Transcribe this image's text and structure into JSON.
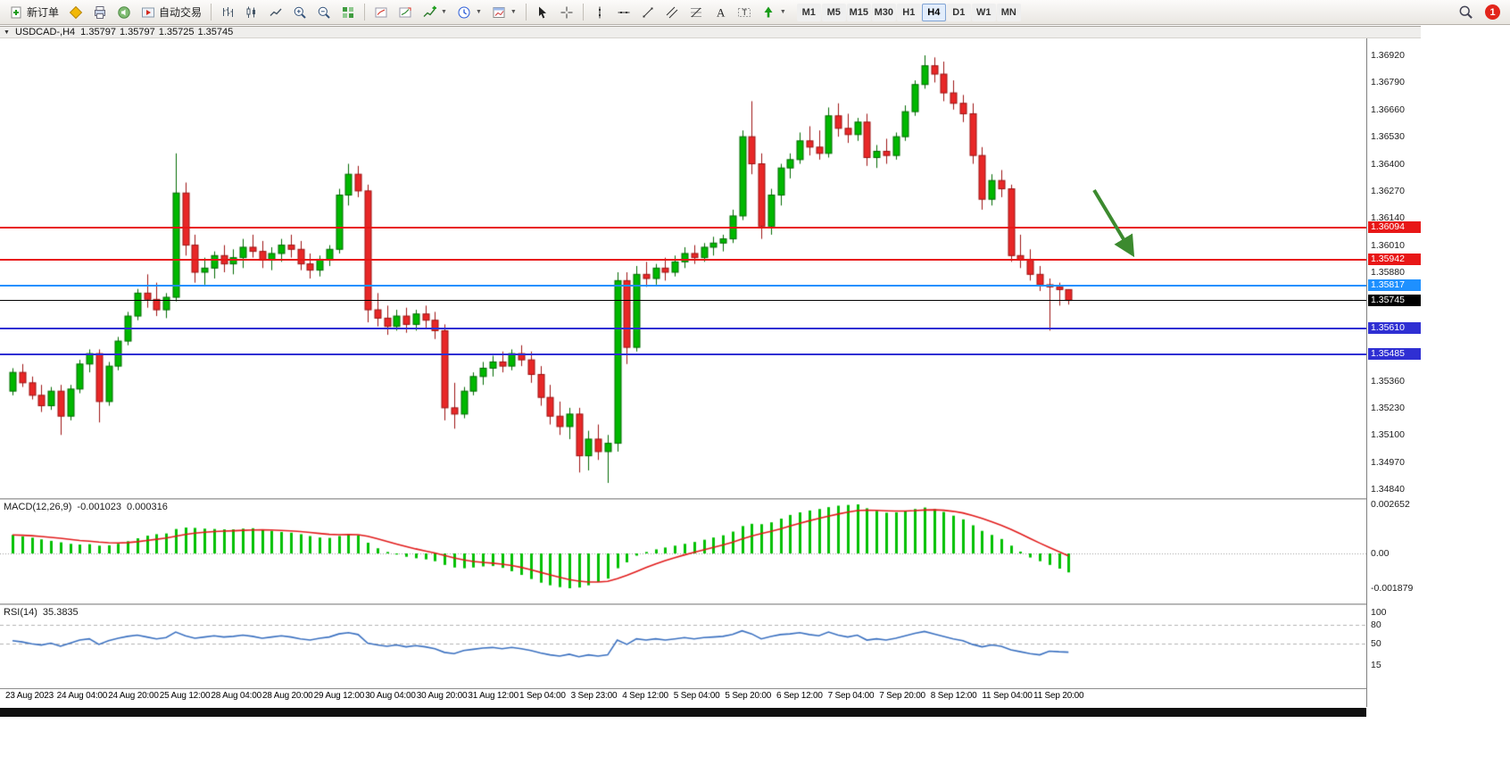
{
  "toolbar": {
    "new_order_label": "新订单",
    "autotrading_label": "自动交易",
    "timeframes": [
      "M1",
      "M5",
      "M15",
      "M30",
      "H1",
      "H4",
      "D1",
      "W1",
      "MN"
    ],
    "active_timeframe": "H4",
    "notification_count": "1"
  },
  "chart": {
    "title": {
      "symbol_period": "USDCAD-,H4",
      "open": "1.35797",
      "high": "1.35797",
      "low": "1.35725",
      "close": "1.35745"
    },
    "colors": {
      "up": "#00b800",
      "up_edge": "#006a00",
      "down": "#e82727",
      "down_edge": "#9c1212",
      "bid_line": "#000000"
    },
    "annotation_arrow": {
      "color": "#3c8a2f"
    },
    "price_axis": {
      "min": 1.3484,
      "max": 1.3692,
      "labels": [
        "1.36920",
        "1.36790",
        "1.36660",
        "1.36530",
        "1.36400",
        "1.36270",
        "1.36140",
        "1.36010",
        "1.35880",
        "1.35360",
        "1.35230",
        "1.35100",
        "1.34970",
        "1.34840"
      ],
      "tags": [
        {
          "price": 1.36094,
          "label": "1.36094",
          "color": "#e81717"
        },
        {
          "price": 1.35942,
          "label": "1.35942",
          "color": "#e81717"
        },
        {
          "price": 1.35817,
          "label": "1.35817",
          "color": "#1e90ff"
        },
        {
          "price": 1.35745,
          "label": "1.35745",
          "color": "#000000"
        },
        {
          "price": 1.3561,
          "label": "1.35610",
          "color": "#2f2fd3"
        },
        {
          "price": 1.35485,
          "label": "1.35485",
          "color": "#2f2fd3"
        }
      ]
    },
    "hlines": [
      {
        "price": 1.36094,
        "color": "#e81717",
        "width": 2
      },
      {
        "price": 1.35942,
        "color": "#e81717",
        "width": 2
      },
      {
        "price": 1.35817,
        "color": "#1e90ff",
        "width": 2
      },
      {
        "price": 1.35745,
        "color": "#000000",
        "width": 1
      },
      {
        "price": 1.3561,
        "color": "#2f2fd3",
        "width": 2
      },
      {
        "price": 1.35485,
        "color": "#2f2fd3",
        "width": 2
      }
    ],
    "time_labels": [
      "23 Aug 2023",
      "24 Aug 04:00",
      "24 Aug 20:00",
      "25 Aug 12:00",
      "28 Aug 04:00",
      "28 Aug 20:00",
      "29 Aug 12:00",
      "30 Aug 04:00",
      "30 Aug 20:00",
      "31 Aug 12:00",
      "1 Sep 04:00",
      "3 Sep 23:00",
      "4 Sep 12:00",
      "5 Sep 04:00",
      "5 Sep 20:00",
      "6 Sep 12:00",
      "7 Sep 04:00",
      "7 Sep 20:00",
      "8 Sep 12:00",
      "11 Sep 04:00",
      "11 Sep 20:00"
    ],
    "candles": [
      [
        1.3531,
        1.3542,
        1.3529,
        1.354
      ],
      [
        1.354,
        1.3544,
        1.3533,
        1.3535
      ],
      [
        1.3535,
        1.3538,
        1.3527,
        1.3529
      ],
      [
        1.3529,
        1.3534,
        1.3521,
        1.3524
      ],
      [
        1.3524,
        1.3533,
        1.3522,
        1.3531
      ],
      [
        1.3531,
        1.3534,
        1.351,
        1.3519
      ],
      [
        1.3519,
        1.3534,
        1.3517,
        1.3532
      ],
      [
        1.3532,
        1.3546,
        1.353,
        1.3544
      ],
      [
        1.3544,
        1.3551,
        1.354,
        1.3549
      ],
      [
        1.3549,
        1.3551,
        1.3516,
        1.3526
      ],
      [
        1.3526,
        1.3545,
        1.3524,
        1.3543
      ],
      [
        1.3543,
        1.3557,
        1.3541,
        1.3555
      ],
      [
        1.3555,
        1.3569,
        1.3553,
        1.3567
      ],
      [
        1.3567,
        1.358,
        1.3565,
        1.3578
      ],
      [
        1.3578,
        1.3587,
        1.3571,
        1.3575
      ],
      [
        1.3575,
        1.3583,
        1.3567,
        1.357
      ],
      [
        1.357,
        1.3578,
        1.3566,
        1.3576
      ],
      [
        1.3576,
        1.3645,
        1.3574,
        1.3626
      ],
      [
        1.3626,
        1.3631,
        1.3596,
        1.3601
      ],
      [
        1.3601,
        1.3606,
        1.3583,
        1.3588
      ],
      [
        1.3588,
        1.3595,
        1.3582,
        1.359
      ],
      [
        1.359,
        1.3598,
        1.3585,
        1.3596
      ],
      [
        1.3596,
        1.3601,
        1.3588,
        1.3592
      ],
      [
        1.3592,
        1.3599,
        1.3587,
        1.3595
      ],
      [
        1.3595,
        1.3604,
        1.359,
        1.36
      ],
      [
        1.36,
        1.3606,
        1.3595,
        1.3598
      ],
      [
        1.3598,
        1.3603,
        1.359,
        1.3594
      ],
      [
        1.3594,
        1.36,
        1.3589,
        1.3597
      ],
      [
        1.3597,
        1.3604,
        1.3593,
        1.3601
      ],
      [
        1.3601,
        1.3606,
        1.3595,
        1.3599
      ],
      [
        1.3599,
        1.3603,
        1.3589,
        1.3592
      ],
      [
        1.3592,
        1.3597,
        1.3585,
        1.3589
      ],
      [
        1.3589,
        1.3596,
        1.3586,
        1.3594
      ],
      [
        1.3594,
        1.3601,
        1.3591,
        1.3599
      ],
      [
        1.3599,
        1.3628,
        1.3597,
        1.3625
      ],
      [
        1.3625,
        1.364,
        1.362,
        1.3635
      ],
      [
        1.3635,
        1.3639,
        1.3624,
        1.3627
      ],
      [
        1.3627,
        1.363,
        1.3564,
        1.357
      ],
      [
        1.357,
        1.3578,
        1.3562,
        1.3566
      ],
      [
        1.3566,
        1.3572,
        1.3558,
        1.3562
      ],
      [
        1.3562,
        1.357,
        1.356,
        1.3567
      ],
      [
        1.3567,
        1.3571,
        1.3559,
        1.3563
      ],
      [
        1.3563,
        1.357,
        1.356,
        1.3568
      ],
      [
        1.3568,
        1.3572,
        1.3561,
        1.3565
      ],
      [
        1.3565,
        1.3569,
        1.3556,
        1.356
      ],
      [
        1.356,
        1.3563,
        1.3517,
        1.3523
      ],
      [
        1.3523,
        1.3535,
        1.3513,
        1.352
      ],
      [
        1.352,
        1.3533,
        1.3518,
        1.3531
      ],
      [
        1.3531,
        1.354,
        1.3529,
        1.3538
      ],
      [
        1.3538,
        1.3545,
        1.3534,
        1.3542
      ],
      [
        1.3542,
        1.3548,
        1.3538,
        1.3545
      ],
      [
        1.3545,
        1.355,
        1.354,
        1.3543
      ],
      [
        1.3543,
        1.3551,
        1.3541,
        1.3549
      ],
      [
        1.3549,
        1.3553,
        1.3543,
        1.3546
      ],
      [
        1.3546,
        1.355,
        1.3535,
        1.3539
      ],
      [
        1.3539,
        1.3543,
        1.3524,
        1.3528
      ],
      [
        1.3528,
        1.3534,
        1.3515,
        1.3519
      ],
      [
        1.3519,
        1.3526,
        1.351,
        1.3514
      ],
      [
        1.3514,
        1.3523,
        1.3508,
        1.352
      ],
      [
        1.352,
        1.3523,
        1.3492,
        1.35
      ],
      [
        1.35,
        1.3512,
        1.3493,
        1.3508
      ],
      [
        1.3508,
        1.3515,
        1.3498,
        1.3502
      ],
      [
        1.3502,
        1.351,
        1.3487,
        1.3506
      ],
      [
        1.3506,
        1.3588,
        1.3502,
        1.3584
      ],
      [
        1.3584,
        1.3588,
        1.3544,
        1.3552
      ],
      [
        1.3552,
        1.3591,
        1.355,
        1.3587
      ],
      [
        1.3587,
        1.3593,
        1.3581,
        1.3585
      ],
      [
        1.3585,
        1.3592,
        1.3582,
        1.359
      ],
      [
        1.359,
        1.3595,
        1.3584,
        1.3588
      ],
      [
        1.3588,
        1.3596,
        1.3586,
        1.3593
      ],
      [
        1.3593,
        1.36,
        1.359,
        1.3597
      ],
      [
        1.3597,
        1.3601,
        1.3592,
        1.3595
      ],
      [
        1.3595,
        1.3602,
        1.3593,
        1.36
      ],
      [
        1.36,
        1.3605,
        1.3596,
        1.3602
      ],
      [
        1.3602,
        1.3606,
        1.3598,
        1.3604
      ],
      [
        1.3604,
        1.3618,
        1.3602,
        1.3615
      ],
      [
        1.3615,
        1.3656,
        1.3613,
        1.3653
      ],
      [
        1.3653,
        1.367,
        1.3635,
        1.364
      ],
      [
        1.364,
        1.3645,
        1.3604,
        1.361
      ],
      [
        1.361,
        1.3628,
        1.3606,
        1.3625
      ],
      [
        1.3625,
        1.364,
        1.362,
        1.3638
      ],
      [
        1.3638,
        1.3645,
        1.3633,
        1.3642
      ],
      [
        1.3642,
        1.3655,
        1.364,
        1.3651
      ],
      [
        1.3651,
        1.3658,
        1.3644,
        1.3648
      ],
      [
        1.3648,
        1.3656,
        1.3642,
        1.3645
      ],
      [
        1.3645,
        1.3667,
        1.3643,
        1.3663
      ],
      [
        1.3663,
        1.3669,
        1.3653,
        1.3657
      ],
      [
        1.3657,
        1.3664,
        1.365,
        1.3654
      ],
      [
        1.3654,
        1.3662,
        1.3651,
        1.366
      ],
      [
        1.366,
        1.3664,
        1.3639,
        1.3643
      ],
      [
        1.3643,
        1.3649,
        1.3638,
        1.3646
      ],
      [
        1.3646,
        1.3652,
        1.364,
        1.3644
      ],
      [
        1.3644,
        1.3655,
        1.3642,
        1.3653
      ],
      [
        1.3653,
        1.3668,
        1.3651,
        1.3665
      ],
      [
        1.3665,
        1.368,
        1.3663,
        1.3678
      ],
      [
        1.3678,
        1.3692,
        1.3676,
        1.3687
      ],
      [
        1.3687,
        1.3691,
        1.3679,
        1.3683
      ],
      [
        1.3683,
        1.3689,
        1.367,
        1.3674
      ],
      [
        1.3674,
        1.368,
        1.3666,
        1.3669
      ],
      [
        1.3669,
        1.3673,
        1.366,
        1.3664
      ],
      [
        1.3664,
        1.3669,
        1.364,
        1.3644
      ],
      [
        1.3644,
        1.3648,
        1.3618,
        1.3623
      ],
      [
        1.3623,
        1.3635,
        1.362,
        1.3632
      ],
      [
        1.3632,
        1.3637,
        1.3624,
        1.3628
      ],
      [
        1.3628,
        1.363,
        1.3593,
        1.3596
      ],
      [
        1.3596,
        1.3606,
        1.359,
        1.3594
      ],
      [
        1.3594,
        1.3599,
        1.3584,
        1.3587
      ],
      [
        1.3587,
        1.3591,
        1.3579,
        1.3582
      ],
      [
        1.3582,
        1.3585,
        1.356,
        1.3581
      ],
      [
        1.3581,
        1.3583,
        1.3572,
        1.35797
      ],
      [
        1.35797,
        1.35797,
        1.35725,
        1.35745
      ]
    ]
  },
  "macd": {
    "label": "MACD(12,26,9)",
    "value": "-0.001023",
    "signal_value": "0.000316",
    "axis": [
      "0.002652",
      "0.00",
      "-0.001879"
    ],
    "histogram_color": "#00c000",
    "signal_color": "#e11b1b",
    "values": [
      0.001,
      0.00092,
      0.00085,
      0.00076,
      0.00068,
      0.0006,
      0.00052,
      0.00048,
      0.0005,
      0.00042,
      0.00044,
      0.00052,
      0.00066,
      0.00082,
      0.00096,
      0.00104,
      0.00108,
      0.00132,
      0.0014,
      0.00138,
      0.00134,
      0.00132,
      0.0013,
      0.0013,
      0.00134,
      0.00136,
      0.0013,
      0.00122,
      0.00116,
      0.00112,
      0.00104,
      0.00094,
      0.00086,
      0.00084,
      0.00094,
      0.00104,
      0.00098,
      0.00058,
      0.00028,
      8e-05,
      -6e-05,
      -0.00018,
      -0.00026,
      -0.00032,
      -0.00042,
      -0.00062,
      -0.00076,
      -0.0008,
      -0.00076,
      -0.0007,
      -0.00068,
      -0.00078,
      -0.00096,
      -0.00116,
      -0.00138,
      -0.00158,
      -0.00172,
      -0.00182,
      -0.00188,
      -0.00184,
      -0.00172,
      -0.00154,
      -0.00136,
      -0.0008,
      -0.00048,
      -0.00012,
      8e-05,
      0.00022,
      0.00032,
      0.00042,
      0.00052,
      0.00062,
      0.00074,
      0.00086,
      0.00098,
      0.00118,
      0.00148,
      0.0016,
      0.00158,
      0.00168,
      0.00188,
      0.00208,
      0.00222,
      0.00232,
      0.0024,
      0.0025,
      0.00258,
      0.00262,
      0.00265,
      0.00244,
      0.0023,
      0.0022,
      0.00222,
      0.0023,
      0.0024,
      0.00248,
      0.0024,
      0.00224,
      0.00204,
      0.00184,
      0.00152,
      0.00122,
      0.001,
      0.00078,
      0.00042,
      0.0001,
      -0.00022,
      -0.00042,
      -0.00062,
      -0.00082,
      -0.001023
    ]
  },
  "rsi": {
    "label": "RSI(14)",
    "value": "35.3835",
    "axis": [
      "100",
      "80",
      "50",
      "15"
    ],
    "line_color": "#3a70c0",
    "levels": [
      80,
      50
    ],
    "values": [
      54,
      52,
      49,
      47,
      50,
      45,
      50,
      55,
      57,
      48,
      54,
      58,
      61,
      63,
      60,
      57,
      59,
      68,
      62,
      58,
      60,
      62,
      60,
      61,
      63,
      61,
      58,
      60,
      62,
      60,
      57,
      55,
      58,
      60,
      65,
      67,
      64,
      50,
      47,
      45,
      47,
      44,
      46,
      44,
      41,
      35,
      33,
      38,
      40,
      42,
      43,
      41,
      43,
      41,
      38,
      34,
      31,
      29,
      32,
      28,
      31,
      29,
      31,
      55,
      48,
      57,
      55,
      57,
      55,
      57,
      59,
      57,
      59,
      60,
      61,
      64,
      70,
      65,
      57,
      61,
      64,
      65,
      67,
      64,
      62,
      68,
      63,
      60,
      63,
      55,
      57,
      55,
      58,
      62,
      66,
      69,
      65,
      61,
      57,
      54,
      48,
      44,
      47,
      45,
      39,
      36,
      33,
      31,
      37,
      36,
      35.38
    ]
  }
}
